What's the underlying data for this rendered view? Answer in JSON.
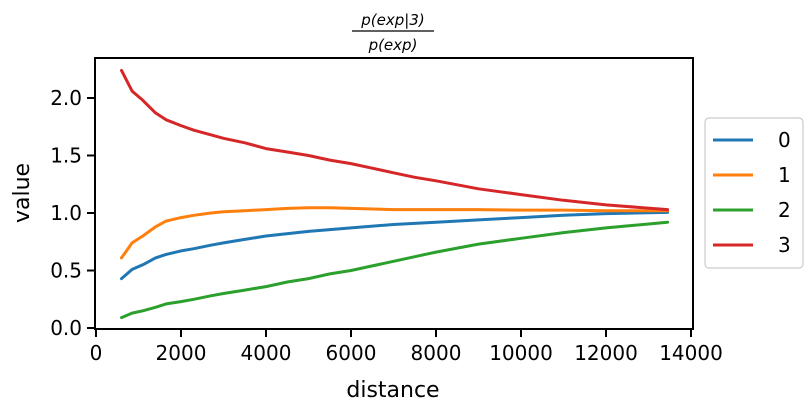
{
  "chart_data": {
    "type": "line",
    "title_numerator": "p(exp|3)",
    "title_denominator": "p(exp)",
    "xlabel": "distance",
    "ylabel": "value",
    "xlim": [
      0,
      14000
    ],
    "ylim": [
      0.0,
      2.35
    ],
    "xticks": [
      0,
      2000,
      4000,
      6000,
      8000,
      10000,
      12000,
      14000
    ],
    "xtick_labels": [
      "0",
      "2000",
      "4000",
      "6000",
      "8000",
      "10000",
      "12000",
      "14000"
    ],
    "yticks": [
      0.0,
      0.5,
      1.0,
      1.5,
      2.0
    ],
    "ytick_labels": [
      "0.0",
      "0.5",
      "1.0",
      "1.5",
      "2.0"
    ],
    "legend_position": "right, outside plot",
    "series": [
      {
        "name": "0",
        "color": "#1f77b4",
        "x": [
          600,
          850,
          1100,
          1400,
          1650,
          2000,
          2300,
          2700,
          3000,
          3500,
          4000,
          5000,
          6000,
          7000,
          8000,
          9000,
          10000,
          11000,
          12000,
          13450
        ],
        "y": [
          0.43,
          0.51,
          0.55,
          0.61,
          0.64,
          0.67,
          0.69,
          0.72,
          0.74,
          0.77,
          0.8,
          0.84,
          0.87,
          0.9,
          0.92,
          0.94,
          0.96,
          0.98,
          0.995,
          1.005
        ]
      },
      {
        "name": "1",
        "color": "#ff7f0e",
        "x": [
          600,
          850,
          1100,
          1400,
          1650,
          2000,
          2300,
          2700,
          3000,
          3500,
          4000,
          4500,
          5000,
          5500,
          6000,
          7000,
          8000,
          9000,
          10000,
          11000,
          12000,
          13450
        ],
        "y": [
          0.61,
          0.74,
          0.8,
          0.88,
          0.93,
          0.96,
          0.98,
          1.0,
          1.01,
          1.02,
          1.03,
          1.04,
          1.045,
          1.045,
          1.04,
          1.03,
          1.03,
          1.03,
          1.025,
          1.025,
          1.02,
          1.02
        ]
      },
      {
        "name": "2",
        "color": "#2ca02c",
        "x": [
          600,
          850,
          1100,
          1400,
          1650,
          2000,
          2300,
          2700,
          3000,
          3500,
          4000,
          4500,
          5000,
          5500,
          6000,
          6500,
          7000,
          7500,
          8000,
          9000,
          10000,
          11000,
          12000,
          13450
        ],
        "y": [
          0.09,
          0.13,
          0.15,
          0.18,
          0.21,
          0.23,
          0.25,
          0.28,
          0.3,
          0.33,
          0.36,
          0.4,
          0.43,
          0.47,
          0.5,
          0.54,
          0.58,
          0.62,
          0.66,
          0.73,
          0.78,
          0.83,
          0.87,
          0.92
        ]
      },
      {
        "name": "3",
        "color": "#d62728",
        "x": [
          600,
          850,
          1100,
          1400,
          1650,
          2000,
          2300,
          2700,
          3000,
          3500,
          4000,
          4500,
          5000,
          5500,
          6000,
          6500,
          7000,
          7500,
          8000,
          9000,
          10000,
          11000,
          12000,
          13450
        ],
        "y": [
          2.24,
          2.06,
          1.98,
          1.87,
          1.81,
          1.76,
          1.72,
          1.68,
          1.65,
          1.61,
          1.56,
          1.53,
          1.5,
          1.46,
          1.43,
          1.39,
          1.35,
          1.31,
          1.28,
          1.21,
          1.16,
          1.11,
          1.07,
          1.03
        ]
      }
    ]
  }
}
